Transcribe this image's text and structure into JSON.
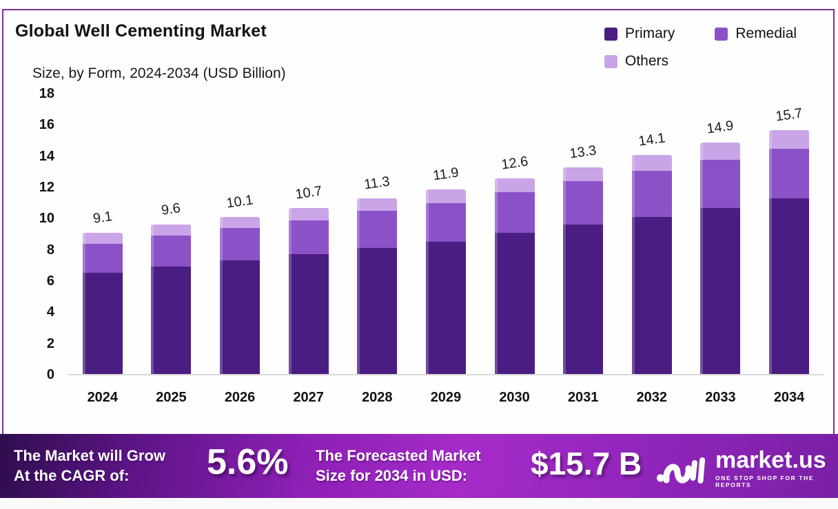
{
  "header": {
    "title": "Global Well Cementing Market",
    "subtitle": "Size, by Form, 2024-2034 (USD Billion)"
  },
  "legend": [
    {
      "label": "Primary",
      "color": "#4a1d82"
    },
    {
      "label": "Remedial",
      "color": "#8b52c8"
    },
    {
      "label": "Others",
      "color": "#c9a5e8"
    }
  ],
  "chart_data": {
    "type": "bar",
    "subtype": "stacked-vertical",
    "title": "Global Well Cementing Market Size, by Form, 2024-2034 (USD Billion)",
    "categories": [
      "2024",
      "2025",
      "2026",
      "2027",
      "2028",
      "2029",
      "2030",
      "2031",
      "2032",
      "2033",
      "2034"
    ],
    "series": [
      {
        "name": "Primary",
        "color": "#4a1d82",
        "values": [
          6.5,
          6.9,
          7.3,
          7.7,
          8.1,
          8.5,
          9.1,
          9.6,
          10.1,
          10.7,
          11.3
        ]
      },
      {
        "name": "Remedial",
        "color": "#8b52c8",
        "values": [
          1.9,
          2.0,
          2.1,
          2.2,
          2.4,
          2.5,
          2.6,
          2.8,
          3.0,
          3.1,
          3.2
        ]
      },
      {
        "name": "Others",
        "color": "#c9a5e8",
        "values": [
          0.7,
          0.7,
          0.7,
          0.8,
          0.8,
          0.9,
          0.9,
          0.9,
          1.0,
          1.1,
          1.2
        ]
      }
    ],
    "totals": [
      9.1,
      9.6,
      10.1,
      10.7,
      11.3,
      11.9,
      12.6,
      13.3,
      14.1,
      14.9,
      15.7
    ],
    "total_labels": [
      "9.1",
      "9.6",
      "10.1",
      "10.7",
      "11.3",
      "11.9",
      "12.6",
      "13.3",
      "14.1",
      "14.9",
      "15.7"
    ],
    "xlabel": "",
    "ylabel": "",
    "ylim": [
      0,
      18
    ],
    "yticks": [
      0,
      2,
      4,
      6,
      8,
      10,
      12,
      14,
      16,
      18
    ],
    "grid": false,
    "legend_position": "top-right"
  },
  "banner": {
    "cagr_label_line1": "The Market will Grow",
    "cagr_label_line2": "At the CAGR of:",
    "cagr_value": "5.6%",
    "forecast_label_line1": "The Forecasted Market",
    "forecast_label_line2": "Size for 2034 in USD:",
    "forecast_value": "$15.7 B",
    "brand_name": "market.us",
    "brand_tagline": "ONE STOP SHOP FOR THE REPORTS"
  },
  "colors": {
    "frame_border": "#7b2d9b",
    "banner_gradient_left": "#2f0e4e",
    "banner_gradient_mid": "#a62bc9",
    "banner_gradient_right": "#7a20a6",
    "axis_line": "#d9d9d9",
    "text": "#111111"
  }
}
